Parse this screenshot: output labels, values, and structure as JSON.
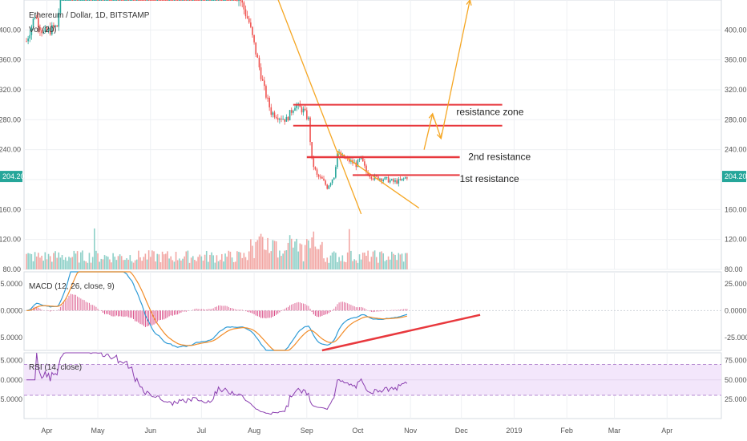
{
  "chart_data": {
    "type": "candlestick",
    "header": {
      "symbol": "Ethereum / Dollar, 1D, BITSTAMP",
      "volume_label": "Vol (20)"
    },
    "price_axis": {
      "ylim": [
        80,
        440
      ],
      "ticks": [
        "80.00",
        "120.00",
        "160.00",
        "200.00",
        "240.00",
        "280.00",
        "320.00",
        "360.00",
        "400.00"
      ]
    },
    "last_price": {
      "value": 204.2,
      "label": "204.20"
    },
    "time_axis": {
      "labels": [
        "Apr",
        "May",
        "Jun",
        "Jul",
        "Aug",
        "Sep",
        "Oct",
        "Nov",
        "Dec",
        "2019",
        "Feb",
        "Mar",
        "Apr"
      ],
      "label_day_index": [
        12,
        42,
        73,
        103,
        134,
        165,
        195,
        226,
        256,
        287,
        318,
        346,
        377
      ]
    },
    "anchors": [
      [
        0,
        385
      ],
      [
        5,
        420
      ],
      [
        10,
        395
      ],
      [
        18,
        405
      ],
      [
        26,
        560
      ],
      [
        32,
        610
      ],
      [
        40,
        680
      ],
      [
        48,
        700
      ],
      [
        55,
        720
      ],
      [
        62,
        710
      ],
      [
        70,
        620
      ],
      [
        78,
        580
      ],
      [
        86,
        530
      ],
      [
        94,
        500
      ],
      [
        101,
        480
      ],
      [
        106,
        460
      ],
      [
        112,
        470
      ],
      [
        120,
        455
      ],
      [
        126,
        440
      ],
      [
        131,
        410
      ],
      [
        136,
        360
      ],
      [
        140,
        320
      ],
      [
        144,
        290
      ],
      [
        148,
        285
      ],
      [
        153,
        280
      ],
      [
        158,
        300
      ],
      [
        163,
        292
      ],
      [
        166,
        280
      ],
      [
        168,
        225
      ],
      [
        171,
        205
      ],
      [
        174,
        200
      ],
      [
        177,
        190
      ],
      [
        181,
        205
      ],
      [
        183,
        235
      ],
      [
        186,
        230
      ],
      [
        190,
        225
      ],
      [
        194,
        220
      ],
      [
        197,
        228
      ],
      [
        200,
        210
      ],
      [
        204,
        203
      ],
      [
        208,
        202
      ],
      [
        212,
        200
      ],
      [
        216,
        197
      ],
      [
        220,
        198
      ],
      [
        224,
        204
      ]
    ],
    "annotations": {
      "lines": [
        {
          "type": "trendline",
          "color": "#f5a623",
          "from": [
            147,
            447
          ],
          "to": [
            197,
            154
          ]
        },
        {
          "type": "trendline",
          "color": "#f5a623",
          "from": [
            183,
            238
          ],
          "to": [
            231,
            162
          ]
        },
        {
          "type": "resistance",
          "color": "#e8383d",
          "from": [
            165,
            230
          ],
          "to": [
            255,
            230
          ],
          "width": 2.5
        },
        {
          "type": "resistance",
          "color": "#e8383d",
          "from": [
            192,
            206
          ],
          "to": [
            255,
            206
          ],
          "width": 2
        },
        {
          "type": "resistance",
          "color": "#e8383d",
          "from": [
            157,
            272
          ],
          "to": [
            280,
            272
          ],
          "width": 2
        },
        {
          "type": "resistance",
          "color": "#e8383d",
          "from": [
            157,
            300
          ],
          "to": [
            280,
            300
          ],
          "width": 2
        }
      ],
      "arrows": [
        {
          "color": "#f5a623",
          "from": [
            234,
            240
          ],
          "to": [
            239,
            288
          ]
        },
        {
          "color": "#f5a623",
          "from": [
            239,
            288
          ],
          "to": [
            244,
            255
          ]
        },
        {
          "color": "#f5a623",
          "from": [
            244,
            255
          ],
          "to": [
            261,
            440
          ]
        }
      ],
      "labels": [
        {
          "text": "resistance zone",
          "at": [
            253,
            286
          ]
        },
        {
          "text": "2nd resistance",
          "at": [
            260,
            226
          ]
        },
        {
          "text": "1st resistance",
          "at": [
            255,
            197
          ]
        }
      ]
    },
    "macd": {
      "label": "MACD (12, 26, close, 9)",
      "ylim": [
        -37,
        36
      ],
      "ticks": [
        "25.0000",
        "0.0000",
        "-25.0000"
      ],
      "trendline": {
        "color": "#e8383d",
        "from": [
          174,
          -37
        ],
        "to": [
          267,
          -4
        ]
      }
    },
    "rsi": {
      "label": "RSI (14, close)",
      "ylim": [
        0,
        85
      ],
      "ticks": [
        "75.0000",
        "50.0000",
        "25.0000"
      ],
      "band": [
        30,
        70
      ]
    }
  }
}
